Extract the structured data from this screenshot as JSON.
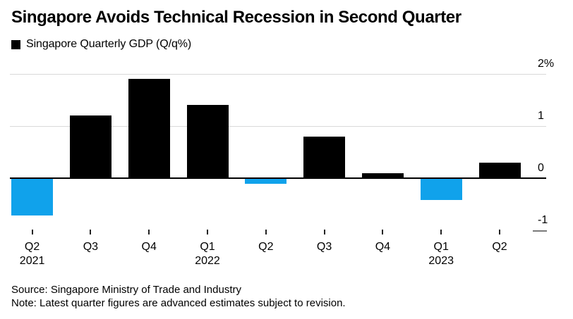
{
  "title": "Singapore Avoids Technical Recession in Second Quarter",
  "legend": {
    "swatch_icon": "black-square-swatch-icon",
    "label": "Singapore Quarterly GDP (Q/q%)"
  },
  "chart_data": {
    "type": "bar",
    "title": "Singapore Avoids Technical Recession in Second Quarter",
    "series_name": "Singapore Quarterly GDP (Q/q%)",
    "categories": [
      "Q2 2021",
      "Q3 2021",
      "Q4 2021",
      "Q1 2022",
      "Q2 2022",
      "Q3 2022",
      "Q4 2022",
      "Q1 2023",
      "Q2 2023"
    ],
    "values": [
      -0.7,
      1.2,
      1.9,
      1.4,
      -0.1,
      0.8,
      0.1,
      -0.4,
      0.3
    ],
    "x_tick_labels": [
      "Q2",
      "Q3",
      "Q4",
      "Q1",
      "Q2",
      "Q3",
      "Q4",
      "Q1",
      "Q2"
    ],
    "x_year_labels": [
      {
        "index": 0,
        "label": "2021"
      },
      {
        "index": 3,
        "label": "2022"
      },
      {
        "index": 7,
        "label": "2023"
      }
    ],
    "y_ticks": [
      {
        "value": 2,
        "label": "2%"
      },
      {
        "value": 1,
        "label": "1"
      },
      {
        "value": 0,
        "label": "0"
      },
      {
        "value": -1,
        "label": "-1"
      }
    ],
    "ylim": [
      -1,
      2
    ],
    "xlabel": "",
    "ylabel": "",
    "grid": true,
    "legend_position": "top-left",
    "y_axis_side": "right",
    "positive_color": "#000000",
    "negative_color": "#10a2eb",
    "background_color": "#ffffff"
  },
  "footer": {
    "source": "Source: Singapore Ministry of Trade and Industry",
    "note": "Note: Latest quarter figures are advanced estimates subject to revision."
  }
}
